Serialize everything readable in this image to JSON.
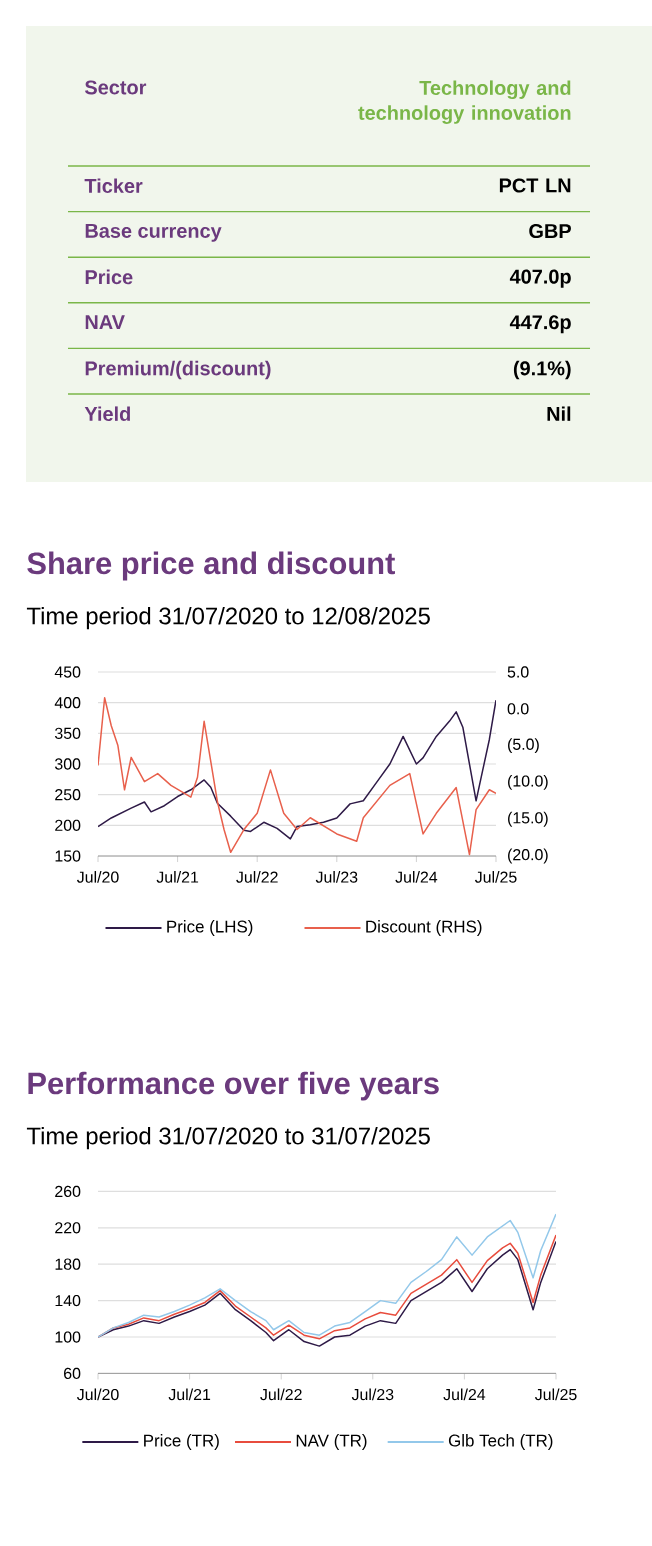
{
  "chart_data": [
    {
      "type": "other",
      "annotations": [
        "Sector",
        "Technology and technology innovation",
        "Ticker",
        "PCT LN",
        "Base currency",
        "GBP",
        "Price",
        "407.0p",
        "NAV",
        "447.6p",
        "Premium/(discount)",
        "(9.1%)",
        "Yield",
        "Nil"
      ]
    },
    {
      "type": "line",
      "title": "Share price and discount",
      "subtitle": "Time period 31/07/2020 to 12/08/2025",
      "xlim": [
        "2020-07",
        "2025-07"
      ],
      "xticks": [
        {
          "value": "2020-07",
          "label": "Jul/20"
        },
        {
          "value": "2021-07",
          "label": "Jul/21"
        },
        {
          "value": "2022-07",
          "label": "Jul/22"
        },
        {
          "value": "2023-07",
          "label": "Jul/23"
        },
        {
          "value": "2024-07",
          "label": "Jul/24"
        },
        {
          "value": "2025-07",
          "label": "Jul/25"
        }
      ],
      "ylim": [
        150,
        450
      ],
      "yticks": [
        150,
        200,
        250,
        300,
        350,
        400,
        450
      ],
      "y2lim": [
        -20,
        5
      ],
      "y2ticks": [
        {
          "value": -20,
          "label": "(20.0)"
        },
        {
          "value": -15,
          "label": "(15.0)"
        },
        {
          "value": -10,
          "label": "(10.0)"
        },
        {
          "value": -5,
          "label": "(5.0)"
        },
        {
          "value": 0,
          "label": "0.0"
        },
        {
          "value": 5,
          "label": "5.0"
        }
      ],
      "grid": "y",
      "legend": "bottom",
      "series": [
        {
          "name": "Price (LHS)",
          "color": "#2e1a47",
          "x": [
            "2020-07",
            "2020-09",
            "2020-12",
            "2021-02",
            "2021-03",
            "2021-05",
            "2021-07",
            "2021-09",
            "2021-11",
            "2021-12",
            "2022-01",
            "2022-03",
            "2022-05",
            "2022-06",
            "2022-08",
            "2022-10",
            "2022-12",
            "2023-01",
            "2023-03",
            "2023-05",
            "2023-07",
            "2023-09",
            "2023-11",
            "2024-01",
            "2024-03",
            "2024-05",
            "2024-07",
            "2024-08",
            "2024-10",
            "2024-12",
            "2025-01",
            "2025-02",
            "2025-04",
            "2025-05",
            "2025-06",
            "2025-07"
          ],
          "values": [
            198,
            212,
            228,
            238,
            222,
            232,
            247,
            258,
            274,
            262,
            236,
            215,
            192,
            190,
            205,
            195,
            178,
            198,
            201,
            205,
            212,
            235,
            240,
            270,
            300,
            345,
            300,
            310,
            345,
            370,
            385,
            360,
            240,
            290,
            340,
            404
          ]
        },
        {
          "name": "Discount (RHS)",
          "color": "#e8604c",
          "axis": "y2",
          "x": [
            "2020-07",
            "2020-08",
            "2020-09",
            "2020-10",
            "2020-11",
            "2020-12",
            "2021-02",
            "2021-04",
            "2021-06",
            "2021-09",
            "2021-10",
            "2021-11",
            "2022-01",
            "2022-02",
            "2022-03",
            "2022-05",
            "2022-07",
            "2022-09",
            "2022-11",
            "2023-01",
            "2023-03",
            "2023-07",
            "2023-10",
            "2023-11",
            "2024-03",
            "2024-06",
            "2024-08",
            "2024-10",
            "2025-01",
            "2025-03",
            "2025-04",
            "2025-06",
            "2025-07"
          ],
          "values": [
            -7.7,
            1.5,
            -2.3,
            -5,
            -11,
            -6.6,
            -9.9,
            -8.8,
            -10.4,
            -12,
            -9.3,
            -1.7,
            -12.6,
            -16.4,
            -19.5,
            -16.4,
            -14.2,
            -8.3,
            -14.2,
            -16.4,
            -14.8,
            -17,
            -18,
            -14.8,
            -10.4,
            -8.8,
            -17,
            -14.2,
            -10.7,
            -19.8,
            -13.7,
            -11,
            -11.5
          ]
        }
      ]
    },
    {
      "type": "line",
      "title": "Performance over five years",
      "subtitle": "Time period 31/07/2020 to 31/07/2025",
      "xlim": [
        "2020-07",
        "2025-07"
      ],
      "xticks": [
        {
          "value": "2020-07",
          "label": "Jul/20"
        },
        {
          "value": "2021-07",
          "label": "Jul/21"
        },
        {
          "value": "2022-07",
          "label": "Jul/22"
        },
        {
          "value": "2023-07",
          "label": "Jul/23"
        },
        {
          "value": "2024-07",
          "label": "Jul/24"
        },
        {
          "value": "2025-07",
          "label": "Jul/25"
        }
      ],
      "ylim": [
        60,
        260
      ],
      "yticks": [
        60,
        100,
        140,
        180,
        220,
        260
      ],
      "grid": "y",
      "legend": "bottom",
      "x": [
        "2020-07",
        "2020-09",
        "2020-11",
        "2021-01",
        "2021-03",
        "2021-05",
        "2021-07",
        "2021-09",
        "2021-11",
        "2022-01",
        "2022-03",
        "2022-05",
        "2022-06",
        "2022-08",
        "2022-10",
        "2022-12",
        "2023-02",
        "2023-04",
        "2023-06",
        "2023-08",
        "2023-10",
        "2023-12",
        "2024-02",
        "2024-04",
        "2024-06",
        "2024-08",
        "2024-10",
        "2024-12",
        "2025-01",
        "2025-02",
        "2025-04",
        "2025-05",
        "2025-07"
      ],
      "series": [
        {
          "name": "Price (TR)",
          "color": "#2e1a47",
          "values": [
            100,
            108,
            112,
            118,
            115,
            122,
            128,
            135,
            148,
            130,
            118,
            105,
            96,
            108,
            95,
            90,
            100,
            102,
            112,
            118,
            115,
            140,
            150,
            160,
            175,
            150,
            175,
            190,
            196,
            185,
            130,
            160,
            205
          ]
        },
        {
          "name": "NAV (TR)",
          "color": "#e84c3d",
          "values": [
            100,
            110,
            114,
            121,
            118,
            125,
            131,
            138,
            151,
            134,
            122,
            110,
            102,
            113,
            102,
            98,
            107,
            110,
            120,
            127,
            124,
            148,
            158,
            168,
            185,
            160,
            184,
            198,
            203,
            192,
            138,
            168,
            212
          ]
        },
        {
          "name": "Glb Tech (TR)",
          "color": "#93c8ea",
          "values": [
            100,
            110,
            116,
            124,
            122,
            128,
            135,
            143,
            153,
            140,
            128,
            118,
            108,
            118,
            105,
            102,
            112,
            116,
            128,
            140,
            137,
            160,
            172,
            185,
            210,
            190,
            210,
            222,
            228,
            215,
            165,
            195,
            235
          ]
        }
      ]
    }
  ]
}
